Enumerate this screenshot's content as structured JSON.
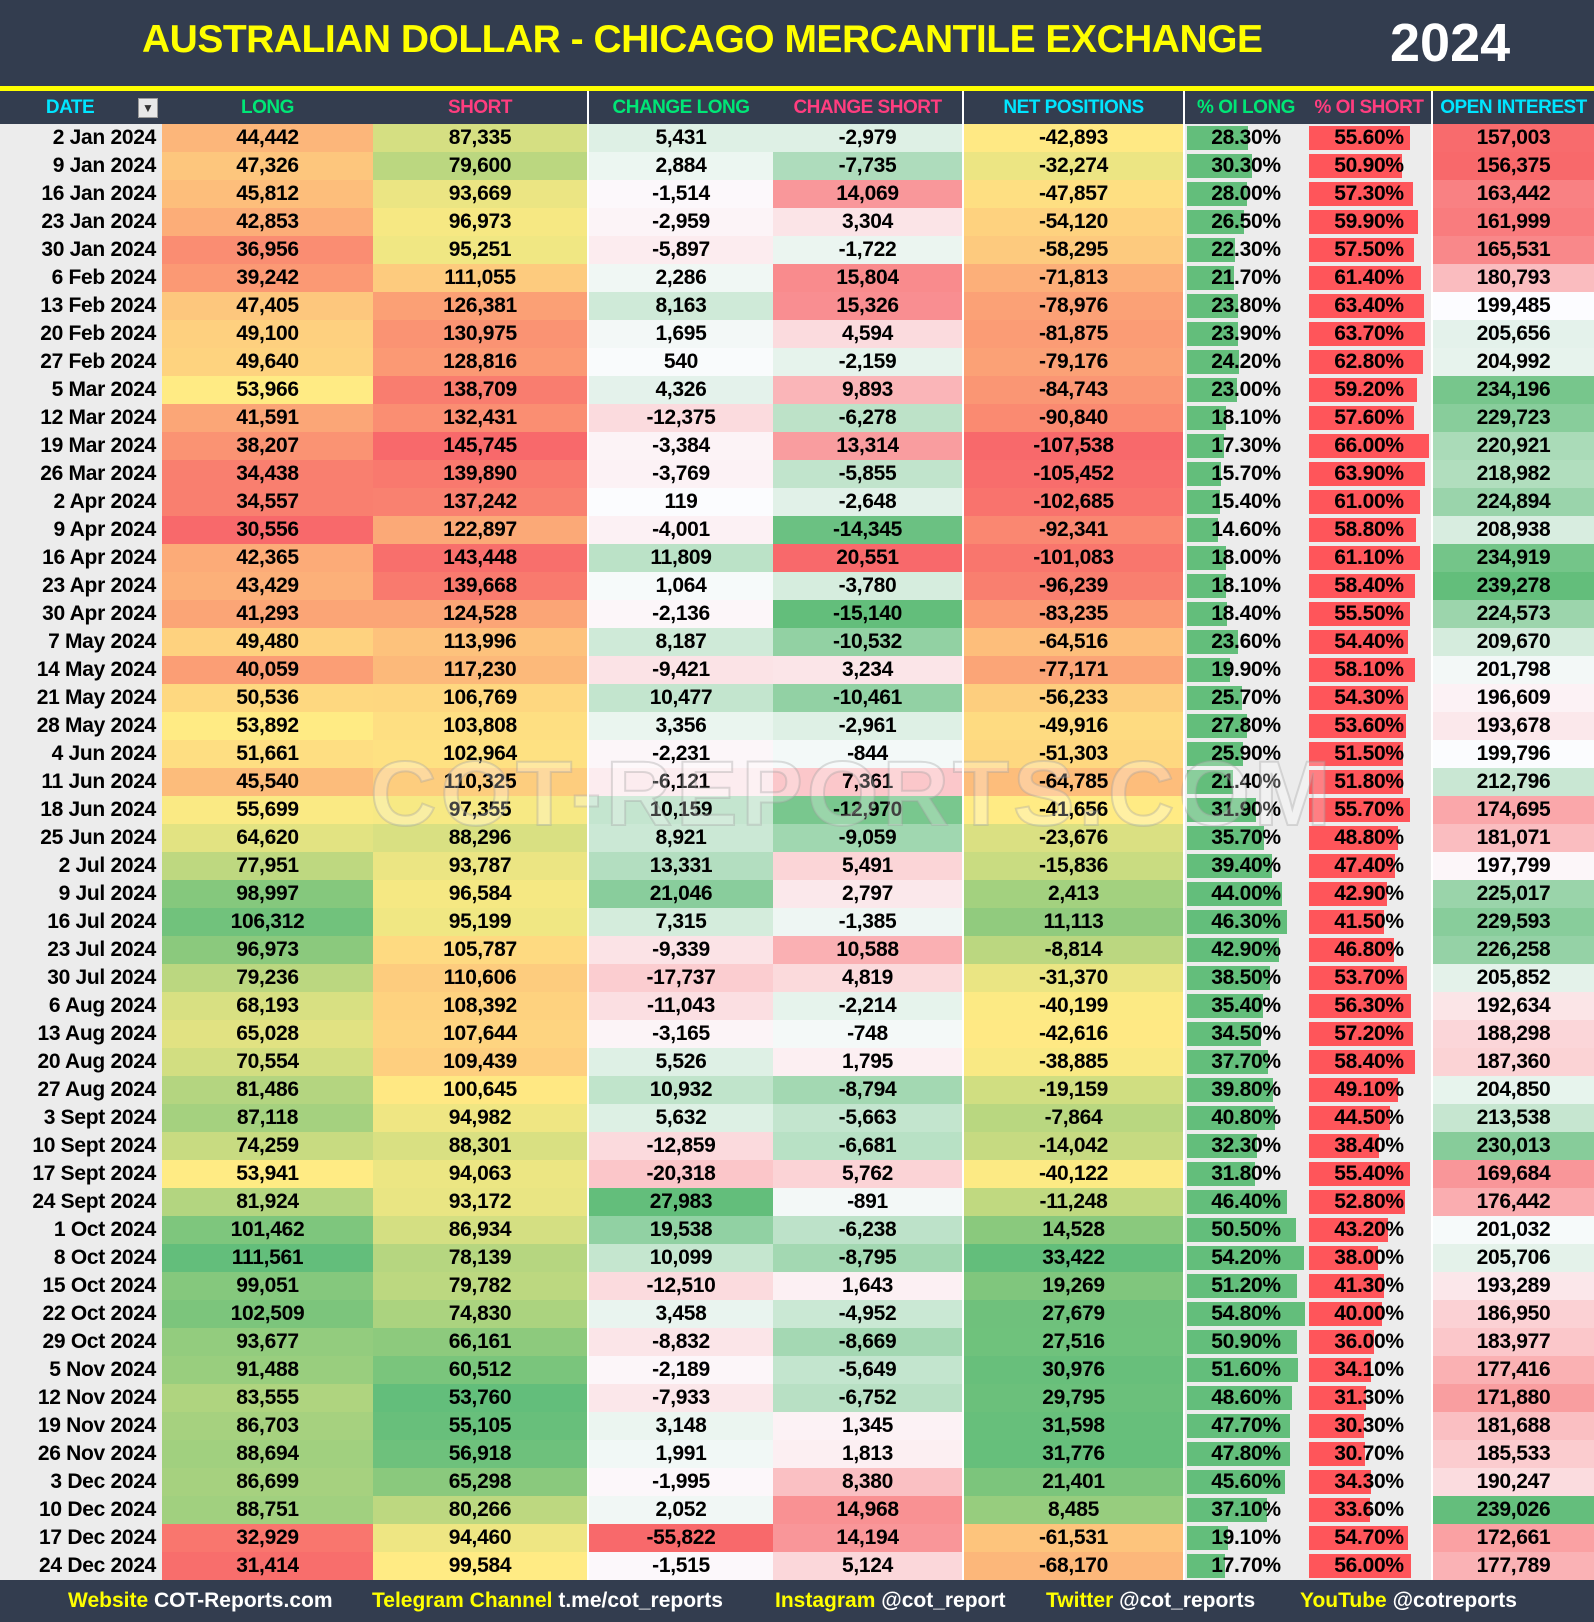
{
  "header": {
    "title": "AUSTRALIAN DOLLAR - CHICAGO MERCANTILE EXCHANGE",
    "year": "2024"
  },
  "columns": [
    {
      "label": "DATE",
      "color": "#00e5ff"
    },
    {
      "label": "LONG",
      "color": "#00e676"
    },
    {
      "label": "SHORT",
      "color": "#ff3d7f"
    },
    {
      "label": "CHANGE LONG",
      "color": "#00e676"
    },
    {
      "label": "CHANGE SHORT",
      "color": "#ff3d7f"
    },
    {
      "label": "NET POSITIONS",
      "color": "#00e5ff"
    },
    {
      "label": "% OI LONG",
      "color": "#00e676"
    },
    {
      "label": "% OI SHORT",
      "color": "#ff3d7f"
    },
    {
      "label": "OPEN INTEREST",
      "color": "#00e5ff"
    }
  ],
  "filter_icon": "filter-sort-icon",
  "colors": {
    "red": "#f8696b",
    "yellow": "#ffeb84",
    "green": "#63be7b",
    "white": "#fcfcff",
    "bar_long": "#63be7b",
    "bar_short": "#ff555a"
  },
  "rows": [
    [
      "2 Jan 2024",
      "44,442",
      "87,335",
      "5,431",
      "-2,979",
      "-42,893",
      "28.30%",
      "55.60%",
      "157,003"
    ],
    [
      "9 Jan 2024",
      "47,326",
      "79,600",
      "2,884",
      "-7,735",
      "-32,274",
      "30.30%",
      "50.90%",
      "156,375"
    ],
    [
      "16 Jan 2024",
      "45,812",
      "93,669",
      "-1,514",
      "14,069",
      "-47,857",
      "28.00%",
      "57.30%",
      "163,442"
    ],
    [
      "23 Jan 2024",
      "42,853",
      "96,973",
      "-2,959",
      "3,304",
      "-54,120",
      "26.50%",
      "59.90%",
      "161,999"
    ],
    [
      "30 Jan 2024",
      "36,956",
      "95,251",
      "-5,897",
      "-1,722",
      "-58,295",
      "22.30%",
      "57.50%",
      "165,531"
    ],
    [
      "6 Feb 2024",
      "39,242",
      "111,055",
      "2,286",
      "15,804",
      "-71,813",
      "21.70%",
      "61.40%",
      "180,793"
    ],
    [
      "13 Feb 2024",
      "47,405",
      "126,381",
      "8,163",
      "15,326",
      "-78,976",
      "23.80%",
      "63.40%",
      "199,485"
    ],
    [
      "20 Feb 2024",
      "49,100",
      "130,975",
      "1,695",
      "4,594",
      "-81,875",
      "23.90%",
      "63.70%",
      "205,656"
    ],
    [
      "27 Feb 2024",
      "49,640",
      "128,816",
      "540",
      "-2,159",
      "-79,176",
      "24.20%",
      "62.80%",
      "204,992"
    ],
    [
      "5 Mar 2024",
      "53,966",
      "138,709",
      "4,326",
      "9,893",
      "-84,743",
      "23.00%",
      "59.20%",
      "234,196"
    ],
    [
      "12 Mar 2024",
      "41,591",
      "132,431",
      "-12,375",
      "-6,278",
      "-90,840",
      "18.10%",
      "57.60%",
      "229,723"
    ],
    [
      "19 Mar 2024",
      "38,207",
      "145,745",
      "-3,384",
      "13,314",
      "-107,538",
      "17.30%",
      "66.00%",
      "220,921"
    ],
    [
      "26 Mar 2024",
      "34,438",
      "139,890",
      "-3,769",
      "-5,855",
      "-105,452",
      "15.70%",
      "63.90%",
      "218,982"
    ],
    [
      "2 Apr 2024",
      "34,557",
      "137,242",
      "119",
      "-2,648",
      "-102,685",
      "15.40%",
      "61.00%",
      "224,894"
    ],
    [
      "9 Apr 2024",
      "30,556",
      "122,897",
      "-4,001",
      "-14,345",
      "-92,341",
      "14.60%",
      "58.80%",
      "208,938"
    ],
    [
      "16 Apr 2024",
      "42,365",
      "143,448",
      "11,809",
      "20,551",
      "-101,083",
      "18.00%",
      "61.10%",
      "234,919"
    ],
    [
      "23 Apr 2024",
      "43,429",
      "139,668",
      "1,064",
      "-3,780",
      "-96,239",
      "18.10%",
      "58.40%",
      "239,278"
    ],
    [
      "30 Apr 2024",
      "41,293",
      "124,528",
      "-2,136",
      "-15,140",
      "-83,235",
      "18.40%",
      "55.50%",
      "224,573"
    ],
    [
      "7 May 2024",
      "49,480",
      "113,996",
      "8,187",
      "-10,532",
      "-64,516",
      "23.60%",
      "54.40%",
      "209,670"
    ],
    [
      "14 May 2024",
      "40,059",
      "117,230",
      "-9,421",
      "3,234",
      "-77,171",
      "19.90%",
      "58.10%",
      "201,798"
    ],
    [
      "21 May 2024",
      "50,536",
      "106,769",
      "10,477",
      "-10,461",
      "-56,233",
      "25.70%",
      "54.30%",
      "196,609"
    ],
    [
      "28 May 2024",
      "53,892",
      "103,808",
      "3,356",
      "-2,961",
      "-49,916",
      "27.80%",
      "53.60%",
      "193,678"
    ],
    [
      "4 Jun 2024",
      "51,661",
      "102,964",
      "-2,231",
      "-844",
      "-51,303",
      "25.90%",
      "51.50%",
      "199,796"
    ],
    [
      "11 Jun 2024",
      "45,540",
      "110,325",
      "-6,121",
      "7,361",
      "-64,785",
      "21.40%",
      "51.80%",
      "212,796"
    ],
    [
      "18 Jun 2024",
      "55,699",
      "97,355",
      "10,159",
      "-12,970",
      "-41,656",
      "31.90%",
      "55.70%",
      "174,695"
    ],
    [
      "25 Jun 2024",
      "64,620",
      "88,296",
      "8,921",
      "-9,059",
      "-23,676",
      "35.70%",
      "48.80%",
      "181,071"
    ],
    [
      "2 Jul 2024",
      "77,951",
      "93,787",
      "13,331",
      "5,491",
      "-15,836",
      "39.40%",
      "47.40%",
      "197,799"
    ],
    [
      "9 Jul 2024",
      "98,997",
      "96,584",
      "21,046",
      "2,797",
      "2,413",
      "44.00%",
      "42.90%",
      "225,017"
    ],
    [
      "16 Jul 2024",
      "106,312",
      "95,199",
      "7,315",
      "-1,385",
      "11,113",
      "46.30%",
      "41.50%",
      "229,593"
    ],
    [
      "23 Jul 2024",
      "96,973",
      "105,787",
      "-9,339",
      "10,588",
      "-8,814",
      "42.90%",
      "46.80%",
      "226,258"
    ],
    [
      "30 Jul 2024",
      "79,236",
      "110,606",
      "-17,737",
      "4,819",
      "-31,370",
      "38.50%",
      "53.70%",
      "205,852"
    ],
    [
      "6 Aug 2024",
      "68,193",
      "108,392",
      "-11,043",
      "-2,214",
      "-40,199",
      "35.40%",
      "56.30%",
      "192,634"
    ],
    [
      "13 Aug 2024",
      "65,028",
      "107,644",
      "-3,165",
      "-748",
      "-42,616",
      "34.50%",
      "57.20%",
      "188,298"
    ],
    [
      "20 Aug 2024",
      "70,554",
      "109,439",
      "5,526",
      "1,795",
      "-38,885",
      "37.70%",
      "58.40%",
      "187,360"
    ],
    [
      "27 Aug 2024",
      "81,486",
      "100,645",
      "10,932",
      "-8,794",
      "-19,159",
      "39.80%",
      "49.10%",
      "204,850"
    ],
    [
      "3 Sept 2024",
      "87,118",
      "94,982",
      "5,632",
      "-5,663",
      "-7,864",
      "40.80%",
      "44.50%",
      "213,538"
    ],
    [
      "10 Sept 2024",
      "74,259",
      "88,301",
      "-12,859",
      "-6,681",
      "-14,042",
      "32.30%",
      "38.40%",
      "230,013"
    ],
    [
      "17 Sept 2024",
      "53,941",
      "94,063",
      "-20,318",
      "5,762",
      "-40,122",
      "31.80%",
      "55.40%",
      "169,684"
    ],
    [
      "24 Sept 2024",
      "81,924",
      "93,172",
      "27,983",
      "-891",
      "-11,248",
      "46.40%",
      "52.80%",
      "176,442"
    ],
    [
      "1 Oct 2024",
      "101,462",
      "86,934",
      "19,538",
      "-6,238",
      "14,528",
      "50.50%",
      "43.20%",
      "201,032"
    ],
    [
      "8 Oct 2024",
      "111,561",
      "78,139",
      "10,099",
      "-8,795",
      "33,422",
      "54.20%",
      "38.00%",
      "205,706"
    ],
    [
      "15 Oct 2024",
      "99,051",
      "79,782",
      "-12,510",
      "1,643",
      "19,269",
      "51.20%",
      "41.30%",
      "193,289"
    ],
    [
      "22 Oct 2024",
      "102,509",
      "74,830",
      "3,458",
      "-4,952",
      "27,679",
      "54.80%",
      "40.00%",
      "186,950"
    ],
    [
      "29 Oct 2024",
      "93,677",
      "66,161",
      "-8,832",
      "-8,669",
      "27,516",
      "50.90%",
      "36.00%",
      "183,977"
    ],
    [
      "5 Nov 2024",
      "91,488",
      "60,512",
      "-2,189",
      "-5,649",
      "30,976",
      "51.60%",
      "34.10%",
      "177,416"
    ],
    [
      "12 Nov 2024",
      "83,555",
      "53,760",
      "-7,933",
      "-6,752",
      "29,795",
      "48.60%",
      "31.30%",
      "171,880"
    ],
    [
      "19 Nov 2024",
      "86,703",
      "55,105",
      "3,148",
      "1,345",
      "31,598",
      "47.70%",
      "30.30%",
      "181,688"
    ],
    [
      "26 Nov 2024",
      "88,694",
      "56,918",
      "1,991",
      "1,813",
      "31,776",
      "47.80%",
      "30.70%",
      "185,533"
    ],
    [
      "3 Dec 2024",
      "86,699",
      "65,298",
      "-1,995",
      "8,380",
      "21,401",
      "45.60%",
      "34.30%",
      "190,247"
    ],
    [
      "10 Dec 2024",
      "88,751",
      "80,266",
      "2,052",
      "14,968",
      "8,485",
      "37.10%",
      "33.60%",
      "239,026"
    ],
    [
      "17 Dec 2024",
      "32,929",
      "94,460",
      "-55,822",
      "14,194",
      "-61,531",
      "19.10%",
      "54.70%",
      "172,661"
    ],
    [
      "24 Dec 2024",
      "31,414",
      "99,584",
      "-1,515",
      "5,124",
      "-68,170",
      "17.70%",
      "56.00%",
      "177,789"
    ]
  ],
  "watermark": "COT-REPORTS.COM",
  "footer": [
    {
      "label": "Website",
      "value": "COT-Reports.com"
    },
    {
      "label": "Telegram Channel",
      "value": "t.me/cot_reports"
    },
    {
      "label": "Instagram",
      "value": "@cot_report"
    },
    {
      "label": "Twitter",
      "value": "@cot_reports"
    },
    {
      "label": "YouTube",
      "value": "@cotreports"
    }
  ]
}
